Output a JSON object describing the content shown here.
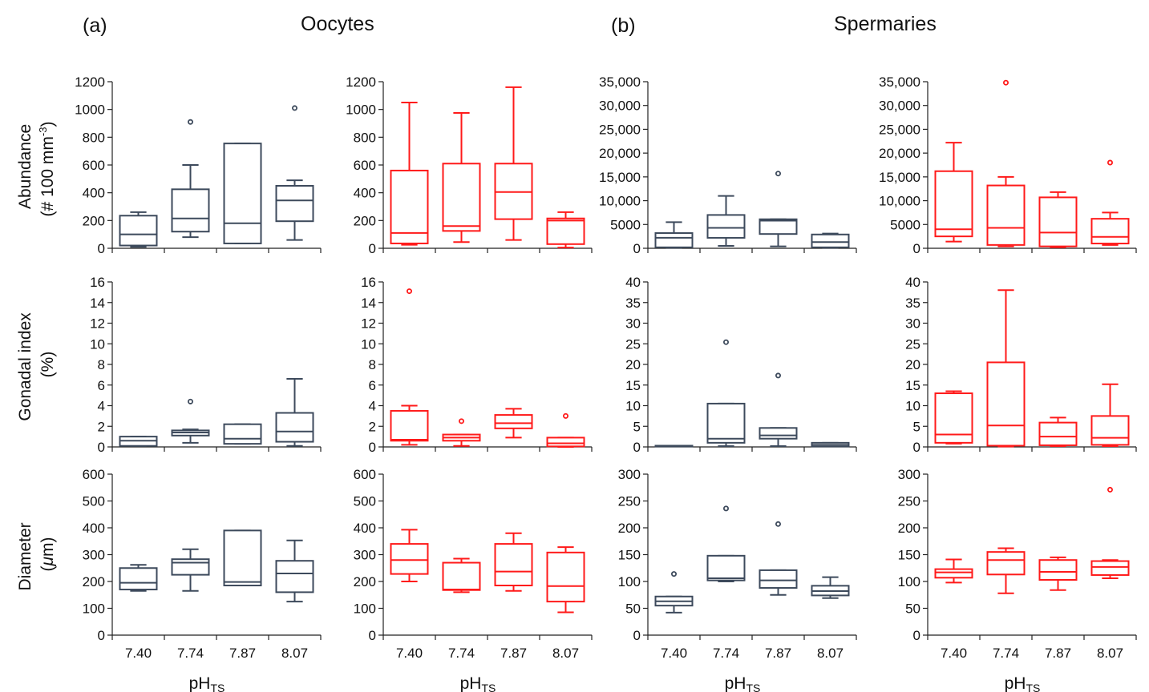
{
  "figure": {
    "section_a_label": "(a)",
    "section_a_title": "Oocytes",
    "section_b_label": "(b)",
    "section_b_title": "Spermaries",
    "row_labels": [
      [
        "Abundance",
        "(# 100 mm",
        "-3",
        ")"
      ],
      [
        "Gonadal index",
        "(%)"
      ],
      [
        "Diameter",
        "(",
        "μ",
        "m)"
      ]
    ],
    "x_label_main": "pH",
    "x_label_sub": "TS",
    "categories": [
      "7.40",
      "7.74",
      "7.87",
      "8.07"
    ],
    "colors": {
      "control": "#3d4a5c",
      "treatment": "#ff1a1a"
    }
  },
  "chart_data": [
    {
      "type": "box",
      "section": "Oocytes",
      "metric": "Abundance",
      "series_color": "#3d4a5c",
      "ylim": [
        0,
        1200
      ],
      "yticks": [
        0,
        200,
        400,
        600,
        800,
        1000,
        1200
      ],
      "ytick_labels": [
        "0",
        "200",
        "400",
        "600",
        "800",
        "1000",
        "1200"
      ],
      "boxes": [
        {
          "category": "7.40",
          "whisker_low": 10,
          "q1": 20,
          "median": 100,
          "q3": 235,
          "whisker_high": 260,
          "outliers": []
        },
        {
          "category": "7.74",
          "whisker_low": 80,
          "q1": 120,
          "median": 215,
          "q3": 425,
          "whisker_high": 600,
          "outliers": [
            910
          ]
        },
        {
          "category": "7.87",
          "whisker_low": 35,
          "q1": 35,
          "median": 180,
          "q3": 755,
          "whisker_high": 755,
          "outliers": []
        },
        {
          "category": "8.07",
          "whisker_low": 60,
          "q1": 195,
          "median": 345,
          "q3": 450,
          "whisker_high": 490,
          "outliers": [
            1010
          ]
        }
      ]
    },
    {
      "type": "box",
      "section": "Oocytes",
      "metric": "Abundance",
      "series_color": "#ff1a1a",
      "ylim": [
        0,
        1200
      ],
      "yticks": [
        0,
        200,
        400,
        600,
        800,
        1000,
        1200
      ],
      "ytick_labels": [
        "0",
        "200",
        "400",
        "600",
        "800",
        "1000",
        "1200"
      ],
      "boxes": [
        {
          "category": "7.40",
          "whisker_low": 25,
          "q1": 35,
          "median": 110,
          "q3": 560,
          "whisker_high": 1050,
          "outliers": []
        },
        {
          "category": "7.74",
          "whisker_low": 45,
          "q1": 125,
          "median": 160,
          "q3": 610,
          "whisker_high": 975,
          "outliers": []
        },
        {
          "category": "7.87",
          "whisker_low": 60,
          "q1": 210,
          "median": 405,
          "q3": 610,
          "whisker_high": 1160,
          "outliers": []
        },
        {
          "category": "8.07",
          "whisker_low": 5,
          "q1": 30,
          "median": 200,
          "q3": 215,
          "whisker_high": 260,
          "outliers": []
        }
      ]
    },
    {
      "type": "box",
      "section": "Spermaries",
      "metric": "Abundance",
      "series_color": "#3d4a5c",
      "ylim": [
        0,
        35000
      ],
      "yticks": [
        0,
        5000,
        10000,
        15000,
        20000,
        25000,
        30000,
        35000
      ],
      "ytick_labels": [
        "0",
        "5000",
        "10,000",
        "15,000",
        "20,000",
        "25,000",
        "30,000",
        "35,000"
      ],
      "boxes": [
        {
          "category": "7.40",
          "whisker_low": 100,
          "q1": 200,
          "median": 2200,
          "q3": 3200,
          "whisker_high": 5500,
          "outliers": []
        },
        {
          "category": "7.74",
          "whisker_low": 500,
          "q1": 2200,
          "median": 4300,
          "q3": 7000,
          "whisker_high": 11000,
          "outliers": []
        },
        {
          "category": "7.87",
          "whisker_low": 400,
          "q1": 3000,
          "median": 5800,
          "q3": 6100,
          "whisker_high": 6100,
          "outliers": [
            15700
          ]
        },
        {
          "category": "8.07",
          "whisker_low": 100,
          "q1": 200,
          "median": 1300,
          "q3": 2900,
          "whisker_high": 3100,
          "outliers": []
        }
      ]
    },
    {
      "type": "box",
      "section": "Spermaries",
      "metric": "Abundance",
      "series_color": "#ff1a1a",
      "ylim": [
        0,
        35000
      ],
      "yticks": [
        0,
        5000,
        10000,
        15000,
        20000,
        25000,
        30000,
        35000
      ],
      "ytick_labels": [
        "0",
        "5000",
        "10,000",
        "15,000",
        "20,000",
        "25,000",
        "30,000",
        "35,000"
      ],
      "boxes": [
        {
          "category": "7.40",
          "whisker_low": 1400,
          "q1": 2500,
          "median": 4000,
          "q3": 16200,
          "whisker_high": 22200,
          "outliers": []
        },
        {
          "category": "7.74",
          "whisker_low": 400,
          "q1": 700,
          "median": 4300,
          "q3": 13200,
          "whisker_high": 15000,
          "outliers": [
            34800
          ]
        },
        {
          "category": "7.87",
          "whisker_low": 200,
          "q1": 400,
          "median": 3300,
          "q3": 10700,
          "whisker_high": 11800,
          "outliers": []
        },
        {
          "category": "8.07",
          "whisker_low": 700,
          "q1": 1000,
          "median": 2400,
          "q3": 6200,
          "whisker_high": 7500,
          "outliers": [
            18000
          ]
        }
      ]
    },
    {
      "type": "box",
      "section": "Oocytes",
      "metric": "Gonadal index",
      "series_color": "#3d4a5c",
      "ylim": [
        0,
        16
      ],
      "yticks": [
        0,
        2,
        4,
        6,
        8,
        10,
        12,
        14,
        16
      ],
      "ytick_labels": [
        "0",
        "2",
        "4",
        "6",
        "8",
        "10",
        "12",
        "14",
        "16"
      ],
      "boxes": [
        {
          "category": "7.40",
          "whisker_low": 0.1,
          "q1": 0.1,
          "median": 0.6,
          "q3": 1.0,
          "whisker_high": 1.0,
          "outliers": []
        },
        {
          "category": "7.74",
          "whisker_low": 0.4,
          "q1": 1.1,
          "median": 1.4,
          "q3": 1.6,
          "whisker_high": 1.7,
          "outliers": [
            4.4
          ]
        },
        {
          "category": "7.87",
          "whisker_low": 0.3,
          "q1": 0.3,
          "median": 0.8,
          "q3": 2.2,
          "whisker_high": 2.2,
          "outliers": []
        },
        {
          "category": "8.07",
          "whisker_low": 0.1,
          "q1": 0.5,
          "median": 1.5,
          "q3": 3.3,
          "whisker_high": 6.6,
          "outliers": []
        }
      ]
    },
    {
      "type": "box",
      "section": "Oocytes",
      "metric": "Gonadal index",
      "series_color": "#ff1a1a",
      "ylim": [
        0,
        16
      ],
      "yticks": [
        0,
        2,
        4,
        6,
        8,
        10,
        12,
        14,
        16
      ],
      "ytick_labels": [
        "0",
        "2",
        "4",
        "6",
        "8",
        "10",
        "12",
        "14",
        "16"
      ],
      "boxes": [
        {
          "category": "7.40",
          "whisker_low": 0.2,
          "q1": 0.6,
          "median": 0.7,
          "q3": 3.5,
          "whisker_high": 4.0,
          "outliers": [
            15.1
          ]
        },
        {
          "category": "7.74",
          "whisker_low": 0.1,
          "q1": 0.6,
          "median": 0.9,
          "q3": 1.2,
          "whisker_high": 1.2,
          "outliers": [
            2.5
          ]
        },
        {
          "category": "7.87",
          "whisker_low": 0.9,
          "q1": 1.8,
          "median": 2.3,
          "q3": 3.1,
          "whisker_high": 3.7,
          "outliers": []
        },
        {
          "category": "8.07",
          "whisker_low": 0.0,
          "q1": 0.05,
          "median": 0.35,
          "q3": 0.9,
          "whisker_high": 0.9,
          "outliers": [
            3.0
          ]
        }
      ]
    },
    {
      "type": "box",
      "section": "Spermaries",
      "metric": "Gonadal index",
      "series_color": "#3d4a5c",
      "ylim": [
        0,
        40
      ],
      "yticks": [
        0,
        5,
        10,
        15,
        20,
        25,
        30,
        35,
        40
      ],
      "ytick_labels": [
        "0",
        "5",
        "10",
        "15",
        "20",
        "25",
        "30",
        "35",
        "40"
      ],
      "boxes": [
        {
          "category": "7.40",
          "whisker_low": 0.1,
          "q1": 0.1,
          "median": 0.2,
          "q3": 0.3,
          "whisker_high": 0.3,
          "outliers": []
        },
        {
          "category": "7.74",
          "whisker_low": 0.2,
          "q1": 1.0,
          "median": 2.0,
          "q3": 10.5,
          "whisker_high": 10.5,
          "outliers": [
            25.4
          ]
        },
        {
          "category": "7.87",
          "whisker_low": 0.2,
          "q1": 2.0,
          "median": 2.8,
          "q3": 4.6,
          "whisker_high": 4.6,
          "outliers": [
            17.3
          ]
        },
        {
          "category": "8.07",
          "whisker_low": 0.1,
          "q1": 0.1,
          "median": 0.5,
          "q3": 1.0,
          "whisker_high": 1.0,
          "outliers": []
        }
      ]
    },
    {
      "type": "box",
      "section": "Spermaries",
      "metric": "Gonadal index",
      "series_color": "#ff1a1a",
      "ylim": [
        0,
        40
      ],
      "yticks": [
        0,
        5,
        10,
        15,
        20,
        25,
        30,
        35,
        40
      ],
      "ytick_labels": [
        "0",
        "5",
        "10",
        "15",
        "20",
        "25",
        "30",
        "35",
        "40"
      ],
      "boxes": [
        {
          "category": "7.40",
          "whisker_low": 0.8,
          "q1": 1.0,
          "median": 3.0,
          "q3": 13.0,
          "whisker_high": 13.5,
          "outliers": []
        },
        {
          "category": "7.74",
          "whisker_low": 0.1,
          "q1": 0.3,
          "median": 5.2,
          "q3": 20.5,
          "whisker_high": 38.0,
          "outliers": []
        },
        {
          "category": "7.87",
          "whisker_low": 0.2,
          "q1": 0.4,
          "median": 2.5,
          "q3": 5.9,
          "whisker_high": 7.1,
          "outliers": []
        },
        {
          "category": "8.07",
          "whisker_low": 0.2,
          "q1": 0.5,
          "median": 2.2,
          "q3": 7.5,
          "whisker_high": 15.2,
          "outliers": []
        }
      ]
    },
    {
      "type": "box",
      "section": "Oocytes",
      "metric": "Diameter",
      "series_color": "#3d4a5c",
      "ylim": [
        0,
        600
      ],
      "yticks": [
        0,
        100,
        200,
        300,
        400,
        500,
        600
      ],
      "ytick_labels": [
        "0",
        "100",
        "200",
        "300",
        "400",
        "500",
        "600"
      ],
      "boxes": [
        {
          "category": "7.40",
          "whisker_low": 165,
          "q1": 170,
          "median": 195,
          "q3": 250,
          "whisker_high": 262,
          "outliers": []
        },
        {
          "category": "7.74",
          "whisker_low": 165,
          "q1": 225,
          "median": 270,
          "q3": 283,
          "whisker_high": 320,
          "outliers": []
        },
        {
          "category": "7.87",
          "whisker_low": 185,
          "q1": 185,
          "median": 198,
          "q3": 390,
          "whisker_high": 390,
          "outliers": []
        },
        {
          "category": "8.07",
          "whisker_low": 125,
          "q1": 160,
          "median": 230,
          "q3": 277,
          "whisker_high": 353,
          "outliers": []
        }
      ]
    },
    {
      "type": "box",
      "section": "Oocytes",
      "metric": "Diameter",
      "series_color": "#ff1a1a",
      "ylim": [
        0,
        600
      ],
      "yticks": [
        0,
        100,
        200,
        300,
        400,
        500,
        600
      ],
      "ytick_labels": [
        "0",
        "100",
        "200",
        "300",
        "400",
        "500",
        "600"
      ],
      "boxes": [
        {
          "category": "7.40",
          "whisker_low": 200,
          "q1": 228,
          "median": 280,
          "q3": 340,
          "whisker_high": 393,
          "outliers": []
        },
        {
          "category": "7.74",
          "whisker_low": 160,
          "q1": 168,
          "median": 170,
          "q3": 270,
          "whisker_high": 285,
          "outliers": []
        },
        {
          "category": "7.87",
          "whisker_low": 165,
          "q1": 185,
          "median": 237,
          "q3": 340,
          "whisker_high": 380,
          "outliers": []
        },
        {
          "category": "8.07",
          "whisker_low": 85,
          "q1": 125,
          "median": 183,
          "q3": 308,
          "whisker_high": 328,
          "outliers": []
        }
      ]
    },
    {
      "type": "box",
      "section": "Spermaries",
      "metric": "Diameter",
      "series_color": "#3d4a5c",
      "ylim": [
        0,
        300
      ],
      "yticks": [
        0,
        50,
        100,
        150,
        200,
        250,
        300
      ],
      "ytick_labels": [
        "0",
        "50",
        "100",
        "150",
        "200",
        "250",
        "300"
      ],
      "boxes": [
        {
          "category": "7.40",
          "whisker_low": 42,
          "q1": 55,
          "median": 63,
          "q3": 72,
          "whisker_high": 72,
          "outliers": [
            114
          ]
        },
        {
          "category": "7.74",
          "whisker_low": 100,
          "q1": 102,
          "median": 106,
          "q3": 148,
          "whisker_high": 148,
          "outliers": [
            236
          ]
        },
        {
          "category": "7.87",
          "whisker_low": 75,
          "q1": 88,
          "median": 102,
          "q3": 121,
          "whisker_high": 121,
          "outliers": [
            207
          ]
        },
        {
          "category": "8.07",
          "whisker_low": 69,
          "q1": 74,
          "median": 82,
          "q3": 92,
          "whisker_high": 108,
          "outliers": []
        }
      ]
    },
    {
      "type": "box",
      "section": "Spermaries",
      "metric": "Diameter",
      "series_color": "#ff1a1a",
      "ylim": [
        0,
        300
      ],
      "yticks": [
        0,
        50,
        100,
        150,
        200,
        250,
        300
      ],
      "ytick_labels": [
        "0",
        "50",
        "100",
        "150",
        "200",
        "250",
        "300"
      ],
      "boxes": [
        {
          "category": "7.40",
          "whisker_low": 98,
          "q1": 107,
          "median": 117,
          "q3": 123,
          "whisker_high": 141,
          "outliers": []
        },
        {
          "category": "7.74",
          "whisker_low": 78,
          "q1": 113,
          "median": 140,
          "q3": 155,
          "whisker_high": 162,
          "outliers": []
        },
        {
          "category": "7.87",
          "whisker_low": 84,
          "q1": 103,
          "median": 118,
          "q3": 140,
          "whisker_high": 145,
          "outliers": []
        },
        {
          "category": "8.07",
          "whisker_low": 106,
          "q1": 112,
          "median": 127,
          "q3": 138,
          "whisker_high": 140,
          "outliers": [
            271
          ]
        }
      ]
    }
  ]
}
